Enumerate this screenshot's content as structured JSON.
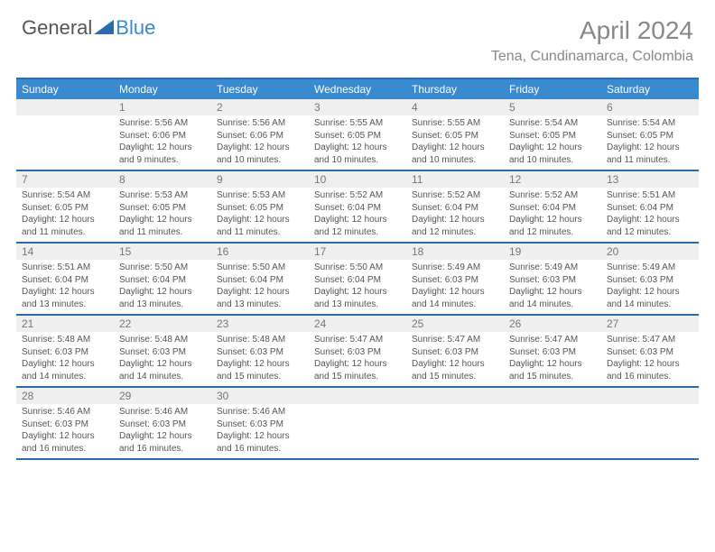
{
  "brand": {
    "part1": "General",
    "part2": "Blue"
  },
  "title": "April 2024",
  "location": "Tena, Cundinamarca, Colombia",
  "day_headers": [
    "Sunday",
    "Monday",
    "Tuesday",
    "Wednesday",
    "Thursday",
    "Friday",
    "Saturday"
  ],
  "colors": {
    "header_bg": "#3a8ad0",
    "rule": "#2a6bb0",
    "daynum_bg": "#efefef",
    "text": "#555555",
    "title": "#888888"
  },
  "weeks": [
    [
      {
        "num": "",
        "lines": []
      },
      {
        "num": "1",
        "lines": [
          "Sunrise: 5:56 AM",
          "Sunset: 6:06 PM",
          "Daylight: 12 hours",
          "and 9 minutes."
        ]
      },
      {
        "num": "2",
        "lines": [
          "Sunrise: 5:56 AM",
          "Sunset: 6:06 PM",
          "Daylight: 12 hours",
          "and 10 minutes."
        ]
      },
      {
        "num": "3",
        "lines": [
          "Sunrise: 5:55 AM",
          "Sunset: 6:05 PM",
          "Daylight: 12 hours",
          "and 10 minutes."
        ]
      },
      {
        "num": "4",
        "lines": [
          "Sunrise: 5:55 AM",
          "Sunset: 6:05 PM",
          "Daylight: 12 hours",
          "and 10 minutes."
        ]
      },
      {
        "num": "5",
        "lines": [
          "Sunrise: 5:54 AM",
          "Sunset: 6:05 PM",
          "Daylight: 12 hours",
          "and 10 minutes."
        ]
      },
      {
        "num": "6",
        "lines": [
          "Sunrise: 5:54 AM",
          "Sunset: 6:05 PM",
          "Daylight: 12 hours",
          "and 11 minutes."
        ]
      }
    ],
    [
      {
        "num": "7",
        "lines": [
          "Sunrise: 5:54 AM",
          "Sunset: 6:05 PM",
          "Daylight: 12 hours",
          "and 11 minutes."
        ]
      },
      {
        "num": "8",
        "lines": [
          "Sunrise: 5:53 AM",
          "Sunset: 6:05 PM",
          "Daylight: 12 hours",
          "and 11 minutes."
        ]
      },
      {
        "num": "9",
        "lines": [
          "Sunrise: 5:53 AM",
          "Sunset: 6:05 PM",
          "Daylight: 12 hours",
          "and 11 minutes."
        ]
      },
      {
        "num": "10",
        "lines": [
          "Sunrise: 5:52 AM",
          "Sunset: 6:04 PM",
          "Daylight: 12 hours",
          "and 12 minutes."
        ]
      },
      {
        "num": "11",
        "lines": [
          "Sunrise: 5:52 AM",
          "Sunset: 6:04 PM",
          "Daylight: 12 hours",
          "and 12 minutes."
        ]
      },
      {
        "num": "12",
        "lines": [
          "Sunrise: 5:52 AM",
          "Sunset: 6:04 PM",
          "Daylight: 12 hours",
          "and 12 minutes."
        ]
      },
      {
        "num": "13",
        "lines": [
          "Sunrise: 5:51 AM",
          "Sunset: 6:04 PM",
          "Daylight: 12 hours",
          "and 12 minutes."
        ]
      }
    ],
    [
      {
        "num": "14",
        "lines": [
          "Sunrise: 5:51 AM",
          "Sunset: 6:04 PM",
          "Daylight: 12 hours",
          "and 13 minutes."
        ]
      },
      {
        "num": "15",
        "lines": [
          "Sunrise: 5:50 AM",
          "Sunset: 6:04 PM",
          "Daylight: 12 hours",
          "and 13 minutes."
        ]
      },
      {
        "num": "16",
        "lines": [
          "Sunrise: 5:50 AM",
          "Sunset: 6:04 PM",
          "Daylight: 12 hours",
          "and 13 minutes."
        ]
      },
      {
        "num": "17",
        "lines": [
          "Sunrise: 5:50 AM",
          "Sunset: 6:04 PM",
          "Daylight: 12 hours",
          "and 13 minutes."
        ]
      },
      {
        "num": "18",
        "lines": [
          "Sunrise: 5:49 AM",
          "Sunset: 6:03 PM",
          "Daylight: 12 hours",
          "and 14 minutes."
        ]
      },
      {
        "num": "19",
        "lines": [
          "Sunrise: 5:49 AM",
          "Sunset: 6:03 PM",
          "Daylight: 12 hours",
          "and 14 minutes."
        ]
      },
      {
        "num": "20",
        "lines": [
          "Sunrise: 5:49 AM",
          "Sunset: 6:03 PM",
          "Daylight: 12 hours",
          "and 14 minutes."
        ]
      }
    ],
    [
      {
        "num": "21",
        "lines": [
          "Sunrise: 5:48 AM",
          "Sunset: 6:03 PM",
          "Daylight: 12 hours",
          "and 14 minutes."
        ]
      },
      {
        "num": "22",
        "lines": [
          "Sunrise: 5:48 AM",
          "Sunset: 6:03 PM",
          "Daylight: 12 hours",
          "and 14 minutes."
        ]
      },
      {
        "num": "23",
        "lines": [
          "Sunrise: 5:48 AM",
          "Sunset: 6:03 PM",
          "Daylight: 12 hours",
          "and 15 minutes."
        ]
      },
      {
        "num": "24",
        "lines": [
          "Sunrise: 5:47 AM",
          "Sunset: 6:03 PM",
          "Daylight: 12 hours",
          "and 15 minutes."
        ]
      },
      {
        "num": "25",
        "lines": [
          "Sunrise: 5:47 AM",
          "Sunset: 6:03 PM",
          "Daylight: 12 hours",
          "and 15 minutes."
        ]
      },
      {
        "num": "26",
        "lines": [
          "Sunrise: 5:47 AM",
          "Sunset: 6:03 PM",
          "Daylight: 12 hours",
          "and 15 minutes."
        ]
      },
      {
        "num": "27",
        "lines": [
          "Sunrise: 5:47 AM",
          "Sunset: 6:03 PM",
          "Daylight: 12 hours",
          "and 16 minutes."
        ]
      }
    ],
    [
      {
        "num": "28",
        "lines": [
          "Sunrise: 5:46 AM",
          "Sunset: 6:03 PM",
          "Daylight: 12 hours",
          "and 16 minutes."
        ]
      },
      {
        "num": "29",
        "lines": [
          "Sunrise: 5:46 AM",
          "Sunset: 6:03 PM",
          "Daylight: 12 hours",
          "and 16 minutes."
        ]
      },
      {
        "num": "30",
        "lines": [
          "Sunrise: 5:46 AM",
          "Sunset: 6:03 PM",
          "Daylight: 12 hours",
          "and 16 minutes."
        ]
      },
      {
        "num": "",
        "lines": []
      },
      {
        "num": "",
        "lines": []
      },
      {
        "num": "",
        "lines": []
      },
      {
        "num": "",
        "lines": []
      }
    ]
  ]
}
